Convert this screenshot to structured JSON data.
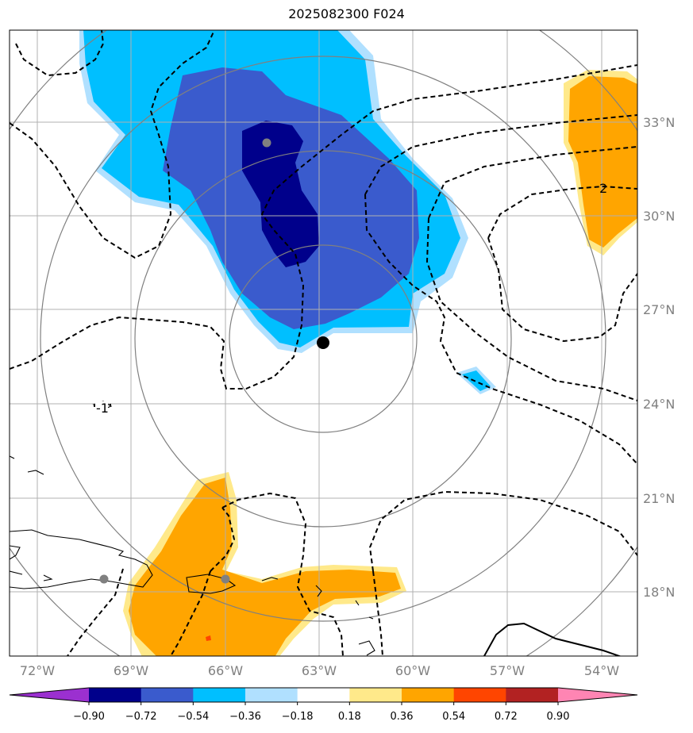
{
  "title": "2025082300 F024",
  "lon_labels": [
    "72°W",
    "69°W",
    "66°W",
    "63°W",
    "60°W",
    "57°W",
    "54°W"
  ],
  "lat_labels": [
    "33°N",
    "30°N",
    "27°N",
    "24°N",
    "21°N",
    "18°N"
  ],
  "contour_labels": [
    "-1",
    "2"
  ],
  "colorbar": {
    "ticks": [
      "−0.90",
      "−0.72",
      "−0.54",
      "−0.36",
      "−0.18",
      "0.18",
      "0.36",
      "0.54",
      "0.72",
      "0.90"
    ],
    "colors": [
      "#9b30d0",
      "#00008b",
      "#3a5bcd",
      "#00bfff",
      "#b0e0ff",
      "#ffffff",
      "#ffe98a",
      "#ffa500",
      "#ff4500",
      "#b22222",
      "#ff85b3"
    ]
  },
  "storm_center": {
    "lon": "63°W",
    "lat": "26°N"
  }
}
